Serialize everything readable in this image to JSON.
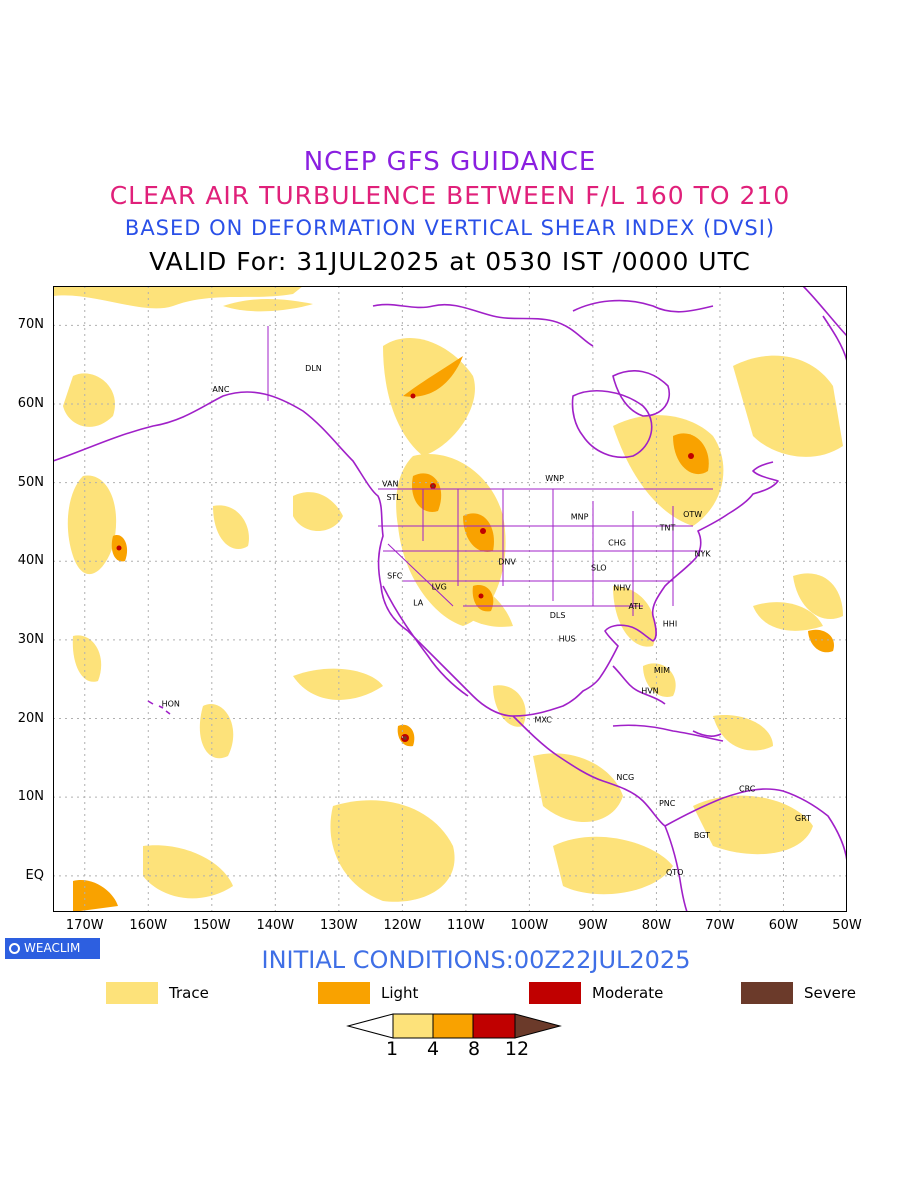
{
  "titles": {
    "line1": "NCEP GFS GUIDANCE",
    "line2": "CLEAR AIR TURBULENCE BETWEEN F/L 160 TO 210",
    "line3": "BASED ON DEFORMATION VERTICAL SHEAR INDEX (DVSI)",
    "line4": "VALID For: 31JUL2025 at 0530 IST /0000 UTC"
  },
  "colors": {
    "title1": "#8a1fe0",
    "title2": "#e0207a",
    "title3": "#2a50e8",
    "boundary": "#a020c8",
    "trace": "#fde27a",
    "light": "#f9a200",
    "moderate": "#c00000",
    "severe": "#6b3a2a",
    "grid": "#b0b0b0"
  },
  "axes": {
    "lat_labels": [
      "70N",
      "60N",
      "50N",
      "40N",
      "30N",
      "20N",
      "10N",
      "EQ"
    ],
    "lon_labels": [
      "170W",
      "160W",
      "150W",
      "140W",
      "130W",
      "120W",
      "110W",
      "100W",
      "90W",
      "80W",
      "70W",
      "60W",
      "50W"
    ]
  },
  "stations": [
    {
      "code": "DLN"
    },
    {
      "code": "ANC"
    },
    {
      "code": "VAN"
    },
    {
      "code": "STL"
    },
    {
      "code": "WNP"
    },
    {
      "code": "MNP"
    },
    {
      "code": "TNT"
    },
    {
      "code": "OTW"
    },
    {
      "code": "CHG"
    },
    {
      "code": "NYK"
    },
    {
      "code": "DNV"
    },
    {
      "code": "SFC"
    },
    {
      "code": "LVG"
    },
    {
      "code": "SLO"
    },
    {
      "code": "LA"
    },
    {
      "code": "NHV"
    },
    {
      "code": "ATL"
    },
    {
      "code": "DLS"
    },
    {
      "code": "HHI"
    },
    {
      "code": "HUS"
    },
    {
      "code": "MIM"
    },
    {
      "code": "HVN"
    },
    {
      "code": "HON"
    },
    {
      "code": "MXC"
    },
    {
      "code": "NCG"
    },
    {
      "code": "CRC"
    },
    {
      "code": "PNC"
    },
    {
      "code": "GRT"
    },
    {
      "code": "BGT"
    },
    {
      "code": "QTO"
    }
  ],
  "badge": {
    "label": "WEACLIM"
  },
  "initial_conditions": "INITIAL CONDITIONS:00Z22JUL2025",
  "legend": [
    {
      "label": "Trace",
      "color": "#fde27a"
    },
    {
      "label": "Light",
      "color": "#f9a200"
    },
    {
      "label": "Moderate",
      "color": "#c00000"
    },
    {
      "label": "Severe",
      "color": "#6b3a2a"
    }
  ],
  "colorbar": {
    "ticks": [
      "1",
      "4",
      "8",
      "12"
    ]
  }
}
